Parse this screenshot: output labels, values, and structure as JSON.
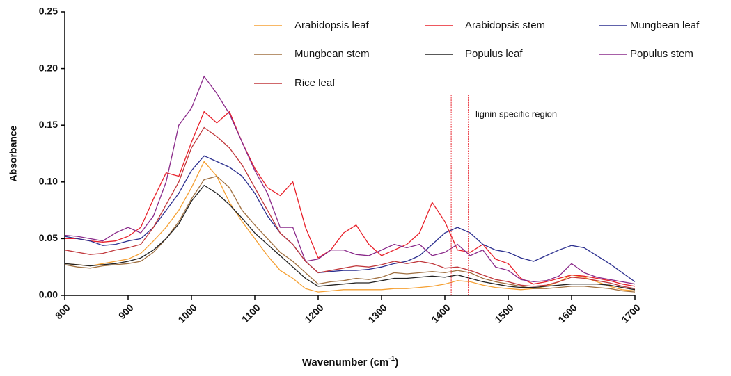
{
  "chart_data": {
    "type": "line",
    "x": [
      800,
      820,
      840,
      860,
      880,
      900,
      920,
      940,
      960,
      980,
      1000,
      1020,
      1040,
      1060,
      1080,
      1100,
      1120,
      1140,
      1160,
      1180,
      1200,
      1220,
      1240,
      1260,
      1280,
      1300,
      1320,
      1340,
      1360,
      1380,
      1400,
      1420,
      1440,
      1460,
      1480,
      1500,
      1520,
      1540,
      1560,
      1580,
      1600,
      1620,
      1640,
      1660,
      1680,
      1700
    ],
    "series": [
      {
        "name": "Arabidopsis leaf",
        "color": "#f5a033",
        "values": [
          0.028,
          0.027,
          0.026,
          0.028,
          0.03,
          0.032,
          0.037,
          0.048,
          0.06,
          0.075,
          0.095,
          0.118,
          0.105,
          0.082,
          0.065,
          0.05,
          0.035,
          0.022,
          0.015,
          0.006,
          0.003,
          0.004,
          0.005,
          0.005,
          0.005,
          0.005,
          0.006,
          0.006,
          0.007,
          0.008,
          0.01,
          0.013,
          0.012,
          0.009,
          0.007,
          0.006,
          0.005,
          0.006,
          0.008,
          0.012,
          0.018,
          0.016,
          0.012,
          0.008,
          0.005,
          0.004
        ]
      },
      {
        "name": "Arabidopsis stem",
        "color": "#e8202a",
        "values": [
          0.05,
          0.05,
          0.048,
          0.047,
          0.048,
          0.052,
          0.06,
          0.085,
          0.108,
          0.105,
          0.135,
          0.162,
          0.152,
          0.162,
          0.135,
          0.112,
          0.095,
          0.088,
          0.1,
          0.06,
          0.033,
          0.04,
          0.055,
          0.062,
          0.045,
          0.035,
          0.04,
          0.045,
          0.055,
          0.082,
          0.065,
          0.04,
          0.038,
          0.045,
          0.032,
          0.028,
          0.015,
          0.01,
          0.012,
          0.015,
          0.018,
          0.017,
          0.015,
          0.013,
          0.01,
          0.008
        ]
      },
      {
        "name": "Mungbean leaf",
        "color": "#2b2f8f",
        "values": [
          0.052,
          0.05,
          0.048,
          0.044,
          0.045,
          0.048,
          0.05,
          0.06,
          0.075,
          0.09,
          0.11,
          0.123,
          0.118,
          0.113,
          0.105,
          0.09,
          0.07,
          0.055,
          0.045,
          0.03,
          0.02,
          0.021,
          0.022,
          0.022,
          0.023,
          0.025,
          0.028,
          0.03,
          0.035,
          0.045,
          0.055,
          0.06,
          0.055,
          0.045,
          0.04,
          0.038,
          0.033,
          0.03,
          0.035,
          0.04,
          0.044,
          0.042,
          0.035,
          0.028,
          0.02,
          0.012
        ]
      },
      {
        "name": "Mungbean stem",
        "color": "#a07040",
        "values": [
          0.027,
          0.025,
          0.024,
          0.026,
          0.027,
          0.028,
          0.03,
          0.038,
          0.05,
          0.065,
          0.085,
          0.102,
          0.105,
          0.095,
          0.075,
          0.062,
          0.05,
          0.038,
          0.03,
          0.02,
          0.01,
          0.012,
          0.013,
          0.015,
          0.014,
          0.016,
          0.02,
          0.019,
          0.02,
          0.021,
          0.02,
          0.022,
          0.02,
          0.015,
          0.012,
          0.01,
          0.008,
          0.006,
          0.006,
          0.007,
          0.008,
          0.008,
          0.007,
          0.006,
          0.004,
          0.003
        ]
      },
      {
        "name": "Populus leaf",
        "color": "#222222",
        "values": [
          0.028,
          0.027,
          0.026,
          0.027,
          0.028,
          0.03,
          0.033,
          0.04,
          0.05,
          0.063,
          0.083,
          0.097,
          0.09,
          0.08,
          0.068,
          0.055,
          0.045,
          0.035,
          0.025,
          0.015,
          0.008,
          0.009,
          0.01,
          0.011,
          0.011,
          0.013,
          0.015,
          0.015,
          0.016,
          0.017,
          0.016,
          0.018,
          0.015,
          0.012,
          0.01,
          0.008,
          0.007,
          0.007,
          0.008,
          0.009,
          0.01,
          0.01,
          0.01,
          0.009,
          0.007,
          0.005
        ]
      },
      {
        "name": "Populus stem",
        "color": "#8a2a8a",
        "values": [
          0.053,
          0.052,
          0.05,
          0.048,
          0.055,
          0.06,
          0.055,
          0.07,
          0.1,
          0.15,
          0.165,
          0.193,
          0.178,
          0.16,
          0.135,
          0.11,
          0.09,
          0.06,
          0.06,
          0.03,
          0.032,
          0.04,
          0.04,
          0.036,
          0.035,
          0.04,
          0.045,
          0.042,
          0.045,
          0.035,
          0.038,
          0.045,
          0.035,
          0.04,
          0.025,
          0.022,
          0.014,
          0.012,
          0.013,
          0.017,
          0.028,
          0.02,
          0.016,
          0.014,
          0.012,
          0.01
        ]
      },
      {
        "name": "Rice leaf",
        "color": "#c0363a",
        "values": [
          0.04,
          0.038,
          0.036,
          0.037,
          0.04,
          0.042,
          0.045,
          0.06,
          0.08,
          0.1,
          0.13,
          0.148,
          0.14,
          0.13,
          0.115,
          0.095,
          0.075,
          0.055,
          0.045,
          0.03,
          0.02,
          0.022,
          0.024,
          0.026,
          0.025,
          0.027,
          0.03,
          0.028,
          0.03,
          0.028,
          0.024,
          0.025,
          0.022,
          0.018,
          0.014,
          0.012,
          0.009,
          0.008,
          0.009,
          0.012,
          0.016,
          0.015,
          0.013,
          0.011,
          0.008,
          0.006
        ]
      }
    ],
    "xlim": [
      800,
      1700
    ],
    "xticks": [
      800,
      900,
      1000,
      1100,
      1200,
      1300,
      1400,
      1500,
      1600,
      1700
    ],
    "ylim": [
      0,
      0.25
    ],
    "yticks": [
      {
        "value": 0,
        "label": "0.00"
      },
      {
        "value": 0.05,
        "label": "0.05"
      },
      {
        "value": 0.1,
        "label": "0.10"
      },
      {
        "value": 0.15,
        "label": "0.15"
      },
      {
        "value": 0.2,
        "label": "0.20"
      },
      {
        "value": 0.25,
        "label": "0.25"
      }
    ],
    "xlabel": [
      "Wavenumber (cm",
      "-1",
      ")"
    ],
    "ylabel": "Absorbance",
    "annotation": "lignin specific region",
    "region": {
      "x": [
        1410,
        1437
      ],
      "top": 0.177,
      "color": "#e8202a"
    },
    "legend_columns": 3
  }
}
